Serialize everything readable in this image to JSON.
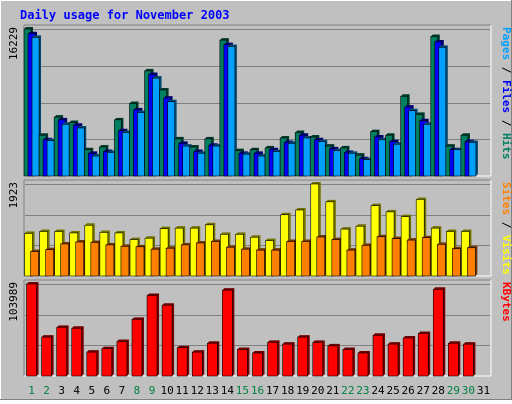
{
  "chart_data": {
    "type": "bar",
    "title": "Daily usage for November 2003",
    "categories": [
      "1",
      "2",
      "3",
      "4",
      "5",
      "6",
      "7",
      "8",
      "9",
      "10",
      "11",
      "12",
      "13",
      "14",
      "15",
      "16",
      "17",
      "18",
      "19",
      "20",
      "21",
      "22",
      "23",
      "24",
      "25",
      "26",
      "27",
      "28",
      "29",
      "30",
      "31"
    ],
    "weekend_days": [
      "1",
      "2",
      "8",
      "9",
      "15",
      "16",
      "22",
      "23",
      "29",
      "30"
    ],
    "panels": [
      {
        "name": "hits-files-pages",
        "max_label": "16229",
        "ylim": [
          0,
          16229
        ],
        "grid": true,
        "side_labels": [
          {
            "text": "Pages",
            "color": "#00a0ff"
          },
          {
            "text": " / ",
            "color": "#000000"
          },
          {
            "text": "Files",
            "color": "#0000ff"
          },
          {
            "text": " / ",
            "color": "#000000"
          },
          {
            "text": "Hits",
            "color": "#008060"
          }
        ],
        "series": [
          {
            "name": "Hits",
            "color": "#008060",
            "values": [
              16229,
              4500,
              6500,
              5900,
              2900,
              3200,
              6200,
              8000,
              11600,
              9500,
              4100,
              3200,
              4100,
              15000,
              2800,
              2900,
              3100,
              4200,
              4800,
              4300,
              3300,
              3100,
              2300,
              4900,
              4500,
              8800,
              6800,
              15400,
              3300,
              4500,
              0
            ]
          },
          {
            "name": "Files",
            "color": "#0000ff",
            "values": [
              15700,
              4000,
              6200,
              5600,
              2500,
              2700,
              5000,
              7300,
              11200,
              8600,
              3600,
              2700,
              3400,
              14500,
              2500,
              2500,
              2900,
              3700,
              4500,
              4000,
              3000,
              2600,
              1900,
              4300,
              3800,
              7600,
              6100,
              14800,
              2900,
              3800,
              0
            ]
          },
          {
            "name": "Pages",
            "color": "#00a0ff",
            "values": [
              15300,
              3900,
              5700,
              5300,
              2200,
              2600,
              4800,
              7000,
              10800,
              8200,
              3300,
              2500,
              3300,
              14300,
              2400,
              2200,
              2700,
              3600,
              4200,
              3800,
              2800,
              2500,
              1800,
              4000,
              3500,
              7200,
              5700,
              14200,
              2900,
              3700,
              0
            ]
          }
        ]
      },
      {
        "name": "visits-sites",
        "max_label": "1923",
        "ylim": [
          0,
          1923
        ],
        "grid": true,
        "side_labels": [
          {
            "text": "Sites",
            "color": "#ff8000"
          },
          {
            "text": " / ",
            "color": "#000000"
          },
          {
            "text": "Visits",
            "color": "#ffff00"
          }
        ],
        "series": [
          {
            "name": "Visits",
            "color": "#ffff00",
            "values": [
              890,
              930,
              930,
              900,
              1060,
              910,
              900,
              760,
              790,
              990,
              1000,
              1000,
              1070,
              870,
              870,
              810,
              740,
              1280,
              1380,
              1923,
              1550,
              980,
              1040,
              1470,
              1340,
              1240,
              1600,
              1000,
              930,
              930,
              0
            ]
          },
          {
            "name": "Sites",
            "color": "#ff8000",
            "values": [
              510,
              550,
              670,
              710,
              700,
              650,
              620,
              610,
              560,
              580,
              650,
              690,
              720,
              600,
              560,
              540,
              540,
              720,
              720,
              815,
              760,
              540,
              640,
              820,
              780,
              750,
              800,
              660,
              570,
              590,
              0
            ]
          }
        ]
      },
      {
        "name": "kbytes",
        "max_label": "103989",
        "ylim": [
          0,
          103989
        ],
        "grid": true,
        "side_labels": [
          {
            "text": "KBytes",
            "color": "#ff0000"
          }
        ],
        "series": [
          {
            "name": "KBytes",
            "color": "#ff0000",
            "values": [
              103989,
              44000,
              55000,
              54000,
              27000,
              31000,
              39000,
              64000,
              91000,
              80000,
              32000,
              27000,
              37000,
              97000,
              30000,
              26000,
              38000,
              36000,
              44000,
              38000,
              34000,
              30000,
              26000,
              46000,
              36000,
              43000,
              48000,
              98000,
              37000,
              36000,
              0
            ]
          }
        ]
      }
    ]
  }
}
